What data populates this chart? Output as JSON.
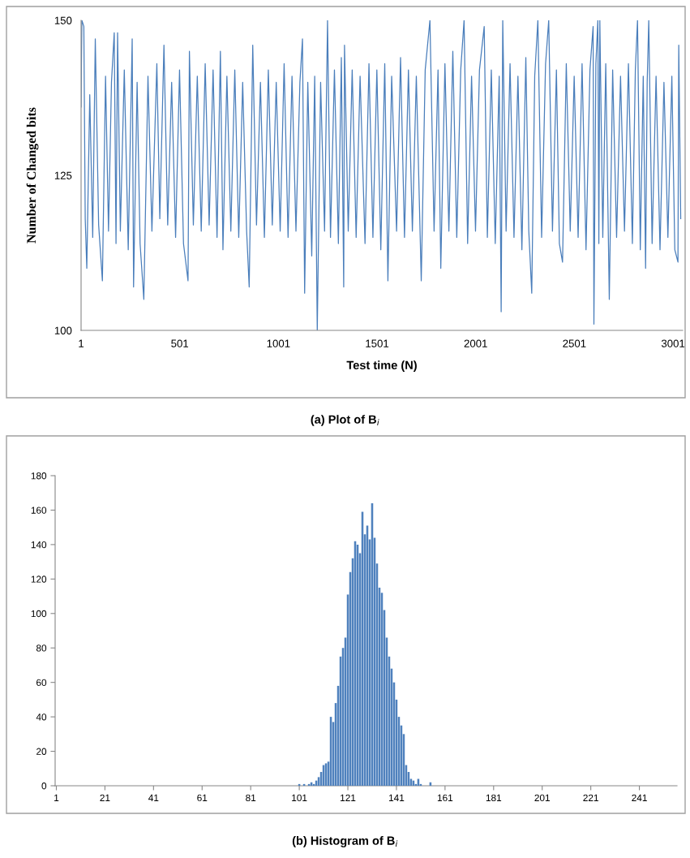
{
  "chart_data": [
    {
      "type": "line",
      "xlabel": "Test time (N)",
      "ylabel": "Number of Changed bits",
      "annotations": [
        "(a) Plot of B$_{i}$"
      ],
      "xlim": [
        1,
        3050
      ],
      "xticks": [
        1,
        501,
        1001,
        1501,
        2001,
        2501,
        3001
      ],
      "ylim": [
        100,
        150
      ],
      "yticks": [
        100,
        125,
        150
      ],
      "series": [
        {
          "color": "#4a7ebb",
          "x": [
            1,
            5,
            15,
            22,
            30,
            45,
            60,
            73,
            90,
            109,
            125,
            140,
            155,
            169,
            178,
            186,
            200,
            220,
            240,
            260,
            267,
            285,
            300,
            319,
            340,
            360,
            385,
            400,
            421,
            440,
            460,
            480,
            500,
            520,
            543,
            550,
            570,
            590,
            610,
            630,
            650,
            670,
            690,
            707,
            720,
            740,
            760,
            780,
            800,
            820,
            840,
            853,
            871,
            890,
            910,
            930,
            950,
            970,
            990,
            1010,
            1030,
            1050,
            1070,
            1090,
            1110,
            1123,
            1134,
            1150,
            1170,
            1185,
            1198,
            1215,
            1235,
            1250,
            1265,
            1285,
            1305,
            1320,
            1332,
            1336,
            1355,
            1375,
            1395,
            1415,
            1440,
            1460,
            1480,
            1500,
            1520,
            1540,
            1556,
            1575,
            1600,
            1620,
            1640,
            1660,
            1680,
            1700,
            1725,
            1745,
            1769,
            1790,
            1810,
            1824,
            1845,
            1865,
            1885,
            1905,
            1925,
            1942,
            1960,
            1980,
            2000,
            2020,
            2044,
            2060,
            2080,
            2100,
            2120,
            2130,
            2138,
            2155,
            2175,
            2195,
            2215,
            2235,
            2255,
            2270,
            2285,
            2300,
            2316,
            2335,
            2355,
            2371,
            2390,
            2410,
            2425,
            2441,
            2460,
            2480,
            2500,
            2520,
            2540,
            2560,
            2580,
            2596,
            2600,
            2610,
            2620,
            2625,
            2630,
            2645,
            2660,
            2678,
            2695,
            2715,
            2735,
            2755,
            2775,
            2795,
            2810,
            2821,
            2835,
            2850,
            2862,
            2870,
            2878,
            2895,
            2915,
            2935,
            2955,
            2975,
            2995,
            3010,
            3026,
            3030,
            3040
          ],
          "values": [
            136,
            150,
            149,
            118,
            110,
            138,
            115,
            147,
            117,
            108,
            141,
            116,
            140,
            148,
            114,
            148,
            116,
            142,
            113,
            147,
            107,
            140,
            114,
            105,
            141,
            116,
            143,
            118,
            146,
            117,
            140,
            115,
            142,
            114,
            108,
            145,
            117,
            141,
            116,
            143,
            117,
            142,
            115,
            145,
            113,
            141,
            116,
            142,
            115,
            140,
            116,
            107,
            146,
            117,
            140,
            115,
            142,
            117,
            140,
            116,
            143,
            115,
            141,
            116,
            140,
            147,
            106,
            140,
            112,
            141,
            100,
            140,
            116,
            150,
            115,
            142,
            114,
            144,
            107,
            146,
            116,
            142,
            115,
            141,
            114,
            143,
            115,
            142,
            113,
            143,
            108,
            141,
            116,
            144,
            115,
            142,
            116,
            141,
            108,
            142,
            150,
            116,
            142,
            110,
            143,
            116,
            145,
            115,
            142,
            150,
            114,
            141,
            116,
            142,
            149,
            115,
            142,
            114,
            141,
            103,
            150,
            116,
            143,
            115,
            141,
            113,
            144,
            116,
            106,
            141,
            150,
            115,
            143,
            150,
            116,
            142,
            114,
            111,
            143,
            116,
            141,
            115,
            143,
            113,
            142,
            149,
            101,
            143,
            150,
            114,
            150,
            115,
            143,
            105,
            142,
            115,
            141,
            116,
            143,
            114,
            142,
            150,
            113,
            141,
            110,
            140,
            150,
            114,
            141,
            113,
            140,
            115,
            141,
            113,
            111,
            146,
            118
          ]
        }
      ]
    },
    {
      "type": "bar",
      "annotations": [
        "(b) Histogram of B$_{i}$"
      ],
      "ylim": [
        0,
        180
      ],
      "yticks": [
        0,
        20,
        40,
        60,
        80,
        100,
        120,
        140,
        160,
        180
      ],
      "color": "#4f81bd",
      "categories": [
        "1",
        null,
        null,
        null,
        null,
        null,
        null,
        null,
        null,
        null,
        null,
        null,
        null,
        null,
        null,
        null,
        null,
        null,
        null,
        null,
        "21",
        null,
        null,
        null,
        null,
        null,
        null,
        null,
        null,
        null,
        null,
        null,
        null,
        null,
        null,
        null,
        null,
        null,
        null,
        null,
        "41",
        null,
        null,
        null,
        null,
        null,
        null,
        null,
        null,
        null,
        null,
        null,
        null,
        null,
        null,
        null,
        null,
        null,
        null,
        null,
        "61",
        null,
        null,
        null,
        null,
        null,
        null,
        null,
        null,
        null,
        null,
        null,
        null,
        null,
        null,
        null,
        null,
        null,
        null,
        null,
        "81",
        null,
        null,
        null,
        null,
        null,
        null,
        null,
        null,
        null,
        null,
        null,
        null,
        null,
        null,
        null,
        null,
        null,
        null,
        null,
        "101",
        null,
        null,
        null,
        null,
        null,
        null,
        null,
        null,
        null,
        null,
        null,
        null,
        null,
        null,
        null,
        null,
        null,
        null,
        null,
        "121",
        null,
        null,
        null,
        null,
        null,
        null,
        null,
        null,
        null,
        null,
        null,
        null,
        null,
        null,
        null,
        null,
        null,
        null,
        null,
        "141",
        null,
        null,
        null,
        null,
        null,
        null,
        null,
        null,
        null,
        null,
        null,
        null,
        null,
        null,
        null,
        null,
        null,
        null,
        null,
        "161",
        null,
        null,
        null,
        null,
        null,
        null,
        null,
        null,
        null,
        null,
        null,
        null,
        null,
        null,
        null,
        null,
        null,
        null,
        null,
        "181",
        null,
        null,
        null,
        null,
        null,
        null,
        null,
        null,
        null,
        null,
        null,
        null,
        null,
        null,
        null,
        null,
        null,
        null,
        null,
        "201",
        null,
        null,
        null,
        null,
        null,
        null,
        null,
        null,
        null,
        null,
        null,
        null,
        null,
        null,
        null,
        null,
        null,
        null,
        null,
        "221",
        null,
        null,
        null,
        null,
        null,
        null,
        null,
        null,
        null,
        null,
        null,
        null,
        null,
        null,
        null,
        null,
        null,
        null,
        null,
        "241",
        null,
        null,
        null,
        null,
        null,
        null,
        null,
        null,
        null,
        null,
        null,
        null,
        null,
        null,
        null
      ],
      "values": [
        0,
        0,
        0,
        0,
        0,
        0,
        0,
        0,
        0,
        0,
        0,
        0,
        0,
        0,
        0,
        0,
        0,
        0,
        0,
        0,
        0,
        0,
        0,
        0,
        0,
        0,
        0,
        0,
        0,
        0,
        0,
        0,
        0,
        0,
        0,
        0,
        0,
        0,
        0,
        0,
        0,
        0,
        0,
        0,
        0,
        0,
        0,
        0,
        0,
        0,
        0,
        0,
        0,
        0,
        0,
        0,
        0,
        0,
        0,
        0,
        0,
        0,
        0,
        0,
        0,
        0,
        0,
        0,
        0,
        0,
        0,
        0,
        0,
        0,
        0,
        0,
        0,
        0,
        0,
        0,
        0,
        0,
        0,
        0,
        0,
        0,
        0,
        0,
        0,
        0,
        0,
        0,
        0,
        0,
        0,
        0,
        0,
        0,
        0,
        0,
        1,
        0,
        1,
        0,
        1,
        2,
        1,
        3,
        5,
        8,
        12,
        13,
        14,
        40,
        37,
        48,
        58,
        75,
        80,
        86,
        111,
        124,
        132,
        142,
        140,
        135,
        159,
        146,
        151,
        143,
        164,
        144,
        129,
        115,
        112,
        102,
        86,
        75,
        68,
        60,
        50,
        40,
        35,
        30,
        12,
        8,
        4,
        3,
        1,
        4,
        1,
        0,
        0,
        0,
        2,
        0,
        0,
        0,
        0,
        0,
        0,
        0,
        0,
        0,
        0,
        0,
        0,
        0,
        0,
        0,
        0,
        0,
        0,
        0,
        0,
        0,
        0,
        0,
        0,
        0,
        0,
        0,
        0,
        0,
        0,
        0,
        0,
        0,
        0,
        0,
        0,
        0,
        0,
        0,
        0,
        0,
        0,
        0,
        0,
        0,
        0,
        0,
        0,
        0,
        0,
        0,
        0,
        0,
        0,
        0,
        0,
        0,
        0,
        0,
        0,
        0,
        0,
        0,
        0,
        0,
        0,
        0,
        0,
        0,
        0,
        0,
        0,
        0,
        0,
        0,
        0,
        0,
        0,
        0,
        0,
        0,
        0,
        0,
        0,
        0,
        0,
        0,
        0,
        0,
        0,
        0,
        0,
        0,
        0,
        0,
        0,
        0,
        0,
        0,
        0,
        0
      ]
    }
  ]
}
